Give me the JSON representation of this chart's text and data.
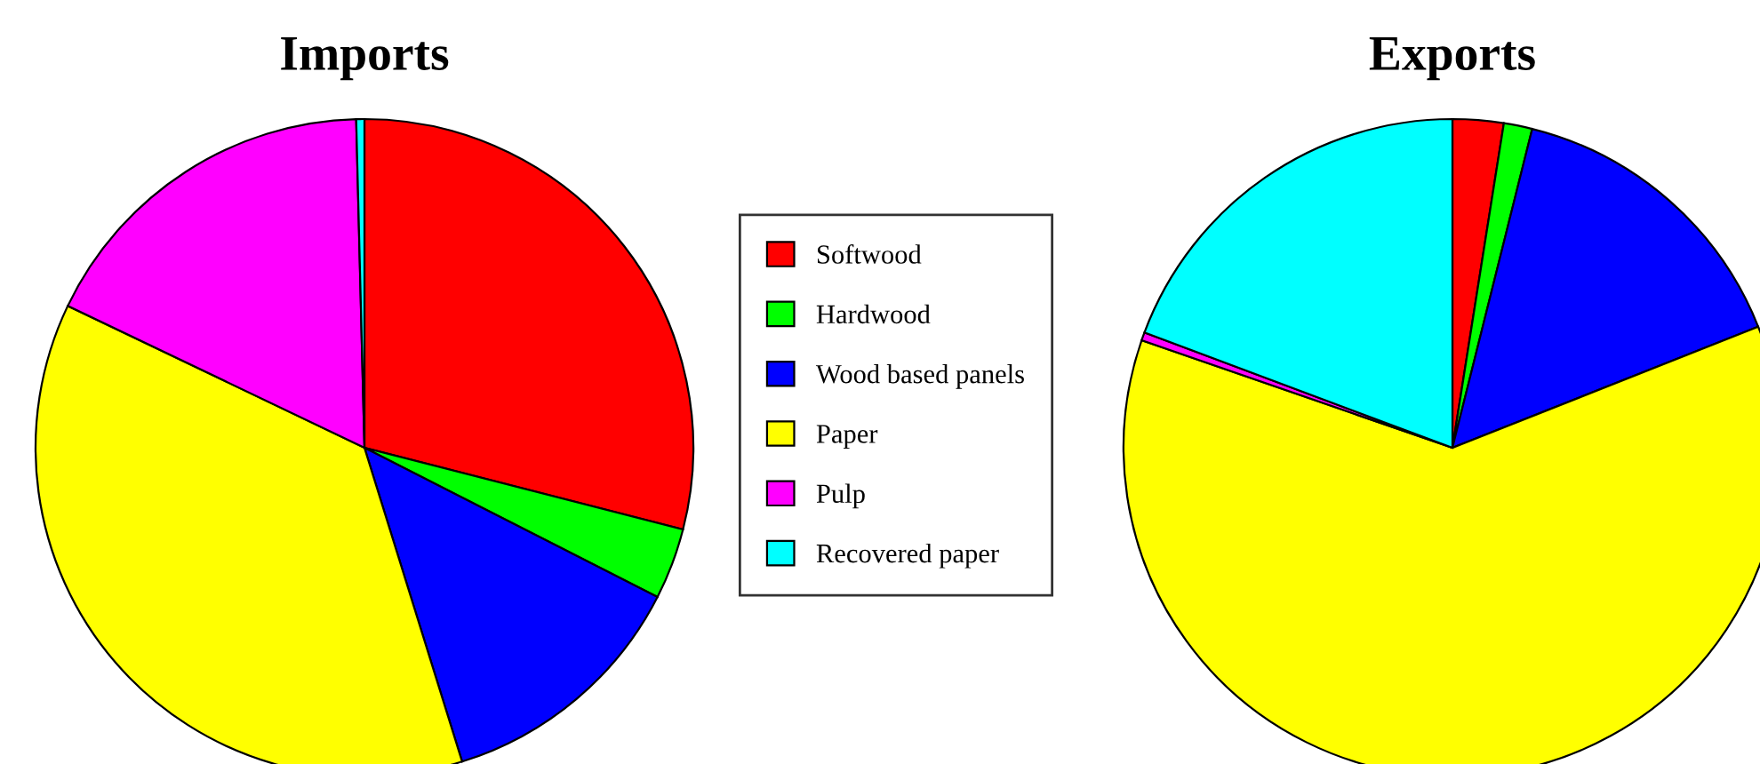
{
  "chart_data": [
    {
      "type": "pie",
      "title": "Imports",
      "categories": [
        "Softwood",
        "Hardwood",
        "Wood based panels",
        "Paper",
        "Pulp",
        "Recovered paper"
      ],
      "values": [
        29,
        3.5,
        12.7,
        36.9,
        17.5,
        0.4
      ],
      "colors": [
        "#ff0000",
        "#00ff00",
        "#0000ff",
        "#ffff00",
        "#ff00ff",
        "#00ffff"
      ],
      "legend": "right"
    },
    {
      "type": "pie",
      "title": "Exports",
      "categories": [
        null,
        null,
        null,
        null,
        null,
        null
      ],
      "values": [
        2.5,
        1.4,
        15.1,
        61.3,
        0.4,
        19.3
      ],
      "colors": [
        "#ff0000",
        "#00ff00",
        "#0000ff",
        "#ffff00",
        "#ff00ff",
        "#00ffff"
      ]
    }
  ]
}
